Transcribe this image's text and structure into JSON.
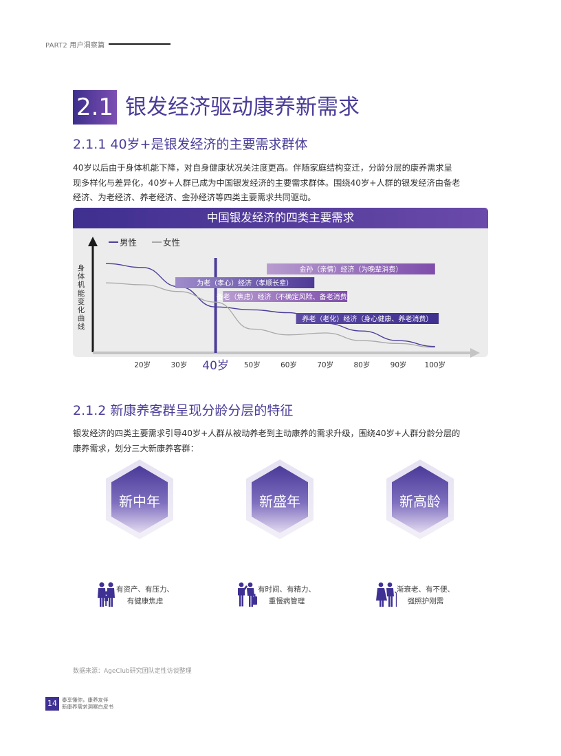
{
  "header": {
    "section_label": "PART2 用户洞察篇"
  },
  "section": {
    "number": "2.1",
    "title": "银发经济驱动康养新需求"
  },
  "subsection1": {
    "title": "2.1.1 40岁+是银发经济的主要需求群体",
    "paragraph_lines": [
      "40岁以后由于身体机能下降，对自身健康状况关注度更高。伴随家庭结构变迁，分龄分层的康养需求呈",
      "现多样化与差异化，40岁+人群已成为中国银发经济的主要需求群体。围绕40岁+人群的银发经济由备老",
      "经济、为老经济、养老经济、金孙经济等四类主要需求共同驱动。"
    ]
  },
  "chart_data": {
    "type": "line",
    "title": "中国银发经济的四类主要需求",
    "ylabel": "身体机能变化曲线",
    "x_ticks": [
      "20岁",
      "30岁",
      "40岁",
      "50岁",
      "60岁",
      "70岁",
      "80岁",
      "90岁",
      "100岁"
    ],
    "x_values": [
      10,
      20,
      30,
      40,
      50,
      60,
      70,
      80,
      90,
      100
    ],
    "highlight_tick": "40岁",
    "legend_position": "top-left",
    "series": [
      {
        "name": "男性",
        "color": "#4b3d99",
        "y": [
          0.92,
          0.88,
          0.68,
          0.47,
          0.44,
          0.41,
          0.3,
          0.22,
          0.12,
          0.06
        ]
      },
      {
        "name": "女性",
        "color": "#a8a8a8",
        "y": [
          0.72,
          0.7,
          0.63,
          0.52,
          0.24,
          0.18,
          0.2,
          0.12,
          0.09,
          0.05
        ]
      }
    ],
    "bands": [
      {
        "label": "金孙（亲情）经济（为晚辈消费）",
        "x_start": 54,
        "x_end": 100,
        "gradient": [
          "#b79ccf",
          "#7e4dab"
        ]
      },
      {
        "label": "为老（孝心）经济（孝顺长辈）",
        "x_start": 29,
        "x_end": 67,
        "gradient": [
          "#9e8ccb",
          "#4e3b96"
        ]
      },
      {
        "label": "备老（焦虑）经济（不确定风险、备老消费）",
        "x_start": 42,
        "x_end": 76,
        "gradient": [
          "#b79ccf",
          "#7e4dab"
        ]
      },
      {
        "label": "养老（老化）经济（身心健康、养老消费）",
        "x_start": 62,
        "x_end": 101,
        "gradient": [
          "#5c4aa3",
          "#3f2f8f"
        ]
      }
    ],
    "grid": false
  },
  "subsection2": {
    "title": "2.1.2 新康养客群呈现分龄分层的特征",
    "paragraph_lines": [
      "银发经济的四类主要需求引导40岁+人群从被动养老到主动康养的需求升级，围绕40岁+人群分龄分层的",
      "康养需求，划分三大新康养客群："
    ]
  },
  "groups": [
    {
      "name": "新中年",
      "icon": "family-icon",
      "caption_lines": [
        "有资产、有压力、",
        "有健康焦虑"
      ]
    },
    {
      "name": "新盛年",
      "icon": "traveler-icon",
      "caption_lines": [
        "有时间、有精力、",
        "重慢病管理"
      ]
    },
    {
      "name": "新高龄",
      "icon": "elderly-couple-icon",
      "caption_lines": [
        "渐衰老、有不便、",
        "强照护刚需"
      ]
    }
  ],
  "source": "数据来源：AgeClub研究团队定性访谈整理",
  "footer": {
    "page_number": "14",
    "lines": [
      "泰享懂你，康养友伴",
      "新康养需求洞察白皮书"
    ]
  }
}
